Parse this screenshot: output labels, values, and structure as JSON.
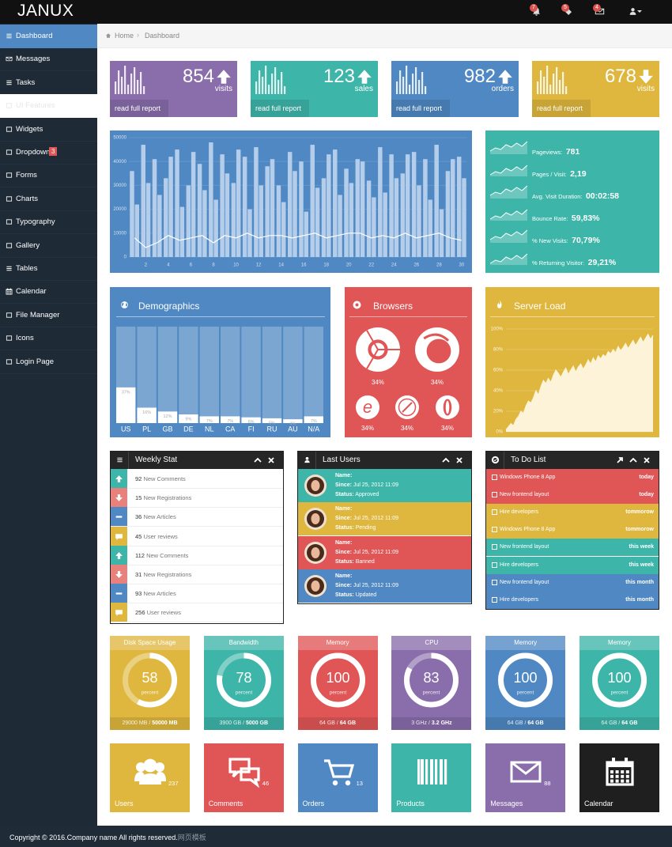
{
  "header": {
    "brand": "JANUX",
    "badges": [
      "7",
      "5",
      "4"
    ]
  },
  "sidebar": {
    "items": [
      "Dashboard",
      "Messages",
      "Tasks",
      "UI Features",
      "Widgets",
      "Dropdown",
      "Forms",
      "Charts",
      "Typography",
      "Gallery",
      "Tables",
      "Calendar",
      "File Manager",
      "Icons",
      "Login Page"
    ],
    "dropdown_badge": "3"
  },
  "breadcrumb": [
    "Home",
    "Dashboard"
  ],
  "stat_boxes": [
    {
      "value": "854",
      "label": "visits",
      "trend": "up",
      "color": "#8a6dab",
      "link": "read full report"
    },
    {
      "value": "123",
      "label": "sales",
      "trend": "up",
      "color": "#3eb5a9",
      "link": "read full report"
    },
    {
      "value": "982",
      "label": "orders",
      "trend": "up",
      "color": "#4f88c3",
      "link": "read full report"
    },
    {
      "value": "678",
      "label": "visits",
      "trend": "down",
      "color": "#dfb73e",
      "link": "read full report"
    }
  ],
  "traffic_chart": {
    "type": "bar",
    "x": [
      1,
      2,
      3,
      4,
      5,
      6,
      7,
      8,
      9,
      10,
      11,
      12,
      13,
      14,
      15,
      16,
      17,
      18,
      19,
      20,
      21,
      22,
      23,
      24,
      25,
      26,
      27,
      28,
      29,
      30
    ],
    "series": [
      {
        "color": "#b3cdea",
        "values": [
          36000,
          47000,
          41000,
          33000,
          45000,
          30000,
          39000,
          48000,
          43000,
          31000,
          42000,
          46000,
          38000,
          30000,
          44000,
          40000,
          47000,
          33000,
          45000,
          37000,
          41000,
          32000,
          46000,
          43000,
          35000,
          44000,
          41000,
          47000,
          36000,
          42000
        ]
      },
      {
        "color": "#b3cdea",
        "values": [
          22000,
          31000,
          26000,
          42000,
          21000,
          44000,
          28000,
          24000,
          35000,
          45000,
          20000,
          30000,
          41000,
          23000,
          36000,
          19000,
          29000,
          43000,
          26000,
          31000,
          40000,
          25000,
          27000,
          33000,
          43000,
          30000,
          24000,
          20000,
          41000,
          33000
        ]
      },
      {
        "type": "line",
        "color": "#ffffff",
        "values": [
          8000,
          4000,
          6000,
          9000,
          7000,
          8000,
          9000,
          6000,
          9000,
          8000,
          10000,
          8000,
          9000,
          9000,
          8000,
          9000,
          10000,
          8000,
          9000,
          10000,
          10000,
          8000,
          9000,
          8000,
          10000,
          8000,
          9000,
          10000,
          8000,
          7000
        ]
      }
    ],
    "xlim": [
      0.5,
      30.5
    ],
    "xticks": [
      2,
      4,
      6,
      8,
      10,
      12,
      14,
      16,
      18,
      20,
      22,
      24,
      26,
      28,
      30
    ],
    "ylim": [
      0,
      50000
    ],
    "yticks": [
      0,
      10000,
      20000,
      30000,
      40000,
      50000
    ],
    "grid": true
  },
  "site_stats": [
    {
      "label": "Pageviews:",
      "value": "781"
    },
    {
      "label": "Pages / Visit:",
      "value": "2,19"
    },
    {
      "label": "Avg. Visit Duration:",
      "value": "00:02:58"
    },
    {
      "label": "Bounce Rate:",
      "value": "59,83%"
    },
    {
      "label": "% New Visits:",
      "value": "70,79%"
    },
    {
      "label": "% Returning Visitor:",
      "value": "29,21%"
    }
  ],
  "demographics": {
    "title": "Demographics",
    "type": "bar",
    "categories": [
      "US",
      "PL",
      "GB",
      "DE",
      "NL",
      "CA",
      "FI",
      "RU",
      "AU",
      "N/A"
    ],
    "values": [
      37,
      16,
      12,
      9,
      7,
      7,
      6,
      5,
      4,
      7
    ],
    "value_labels": [
      "37%",
      "16%",
      "12%",
      "9%",
      "7%",
      "7%",
      "6%",
      "5%",
      "4%",
      "7%"
    ],
    "ylim": [
      0,
      100
    ]
  },
  "browsers": {
    "title": "Browsers",
    "labels": [
      "34%",
      "34%",
      "34%",
      "34%",
      "34%"
    ]
  },
  "server_load": {
    "title": "Server Load",
    "type": "area",
    "values": [
      2,
      5,
      8,
      6,
      12,
      15,
      20,
      18,
      25,
      30,
      28,
      33,
      40,
      36,
      44,
      50,
      47,
      52,
      48,
      55,
      60,
      57,
      53,
      58,
      62,
      56,
      60,
      64,
      58,
      63,
      66,
      61,
      65,
      70,
      66,
      72,
      68,
      74,
      71,
      75,
      73,
      78,
      76,
      80,
      77,
      83,
      79,
      82,
      86,
      81,
      85,
      89,
      84,
      88,
      92,
      87,
      91,
      95,
      90,
      94
    ],
    "ylim": [
      0,
      100
    ],
    "yticks": [
      {
        "value": 0,
        "label": "0%"
      },
      {
        "value": 20,
        "label": "20%"
      },
      {
        "value": 40,
        "label": "40%"
      },
      {
        "value": 60,
        "label": "60%"
      },
      {
        "value": 80,
        "label": "80%"
      },
      {
        "value": 100,
        "label": "100%"
      }
    ],
    "color": "#fdf3d8"
  },
  "weekly_stat": {
    "title": "Weekly Stat",
    "rows": [
      {
        "count": "92",
        "text": "New Comments",
        "icon": "up"
      },
      {
        "count": "15",
        "text": "New Registrations",
        "icon": "down"
      },
      {
        "count": "36",
        "text": "New Articles",
        "icon": "minus"
      },
      {
        "count": "45",
        "text": "User reviews",
        "icon": "comment"
      },
      {
        "count": "112",
        "text": "New Comments",
        "icon": "up"
      },
      {
        "count": "31",
        "text": "New Registrations",
        "icon": "down"
      },
      {
        "count": "93",
        "text": "New Articles",
        "icon": "minus"
      },
      {
        "count": "256",
        "text": "User reviews",
        "icon": "comment"
      }
    ]
  },
  "last_users": {
    "title": "Last Users",
    "name_label": "Name:",
    "since_label": "Since:",
    "status_label": "Status:",
    "users": [
      {
        "since": "Jul 25, 2012 11:09",
        "status": "Approved",
        "color": "#3eb5a9"
      },
      {
        "since": "Jul 25, 2012 11:09",
        "status": "Pending",
        "color": "#dfb73e"
      },
      {
        "since": "Jul 25, 2012 11:09",
        "status": "Banned",
        "color": "#e05656"
      },
      {
        "since": "Jul 25, 2012 11:09",
        "status": "Updated",
        "color": "#4f88c3"
      }
    ]
  },
  "todo": {
    "title": "To Do List",
    "items": [
      {
        "text": "Windows Phone 8 App",
        "when": "today",
        "color": "#e05656"
      },
      {
        "text": "New frontend layout",
        "when": "today",
        "color": "#e05656"
      },
      {
        "text": "Hire developers",
        "when": "tommorow",
        "color": "#dfb73e"
      },
      {
        "text": "Windows Phone 8 App",
        "when": "tommorow",
        "color": "#dfb73e"
      },
      {
        "text": "New frontend layout",
        "when": "this week",
        "color": "#3eb5a9"
      },
      {
        "text": "Hire developers",
        "when": "this week",
        "color": "#3eb5a9"
      },
      {
        "text": "New frontend layout",
        "when": "this month",
        "color": "#4f88c3"
      },
      {
        "text": "Hire developers",
        "when": "this month",
        "color": "#4f88c3"
      }
    ]
  },
  "gauges": [
    {
      "title": "Disk Space Usage",
      "value": 58,
      "unit": "percent",
      "used": "29000 MB /",
      "total": "50000 MB",
      "color": "#dfb73e"
    },
    {
      "title": "Bandwidth",
      "value": 78,
      "unit": "percent",
      "used": "3900 GB /",
      "total": "5000 GB",
      "color": "#3eb5a9"
    },
    {
      "title": "Memory",
      "value": 100,
      "unit": "percent",
      "used": "64 GB /",
      "total": "64 GB",
      "color": "#e05656"
    },
    {
      "title": "CPU",
      "value": 83,
      "unit": "percent",
      "used": "3 GHz /",
      "total": "3.2 GHz",
      "color": "#8a6dab"
    },
    {
      "title": "Memory",
      "value": 100,
      "unit": "percent",
      "used": "64 GB /",
      "total": "64 GB",
      "color": "#4f88c3"
    },
    {
      "title": "Memory",
      "value": 100,
      "unit": "percent",
      "used": "64 GB /",
      "total": "64 GB",
      "color": "#3eb5a9"
    }
  ],
  "tiles": [
    {
      "label": "Users",
      "count": "237",
      "icon": "users",
      "color": "#dfb73e"
    },
    {
      "label": "Comments",
      "count": "46",
      "icon": "comments",
      "color": "#e05656"
    },
    {
      "label": "Orders",
      "count": "13",
      "icon": "cart",
      "color": "#4f88c3"
    },
    {
      "label": "Products",
      "icon": "barcode",
      "color": "#3eb5a9"
    },
    {
      "label": "Messages",
      "count": "88",
      "icon": "envelope",
      "color": "#8a6dab"
    },
    {
      "label": "Calendar",
      "icon": "calendar",
      "color": "#1f1f1f"
    }
  ],
  "footer": {
    "copyright": "Copyright © 2016.Company name All rights reserved.",
    "link": "网页模板"
  }
}
